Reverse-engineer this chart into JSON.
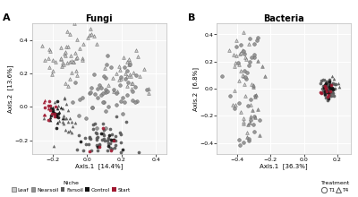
{
  "title_A": "Fungi",
  "title_B": "Bacteria",
  "label_A": "A",
  "label_B": "B",
  "xlabel_A": "Axis.1  [14.4%]",
  "xlabel_B": "Axis.1  [36.3%]",
  "ylabel_A": "Axis.2  [13.6%]",
  "ylabel_B": "Axis.2  [6.8%]",
  "xlim_A": [
    -0.32,
    0.46
  ],
  "ylim_A": [
    -0.28,
    0.5
  ],
  "xlim_B": [
    -0.52,
    0.28
  ],
  "ylim_B": [
    -0.48,
    0.48
  ],
  "xticks_A": [
    -0.2,
    0.0,
    0.2,
    0.4
  ],
  "yticks_A": [
    -0.2,
    0.0,
    0.2,
    0.4
  ],
  "xticks_B": [
    -0.4,
    -0.2,
    0.0,
    0.2
  ],
  "yticks_B": [
    -0.4,
    -0.2,
    0.0,
    0.2,
    0.4
  ],
  "colors": {
    "Leaf": "#c8c8c8",
    "Nearsoil": "#909090",
    "Farsoil": "#585858",
    "Control": "#111111",
    "Start": "#a01830"
  },
  "panel_bg": "#f5f5f5",
  "fig_bg": "#ffffff",
  "grid_color": "#ffffff"
}
